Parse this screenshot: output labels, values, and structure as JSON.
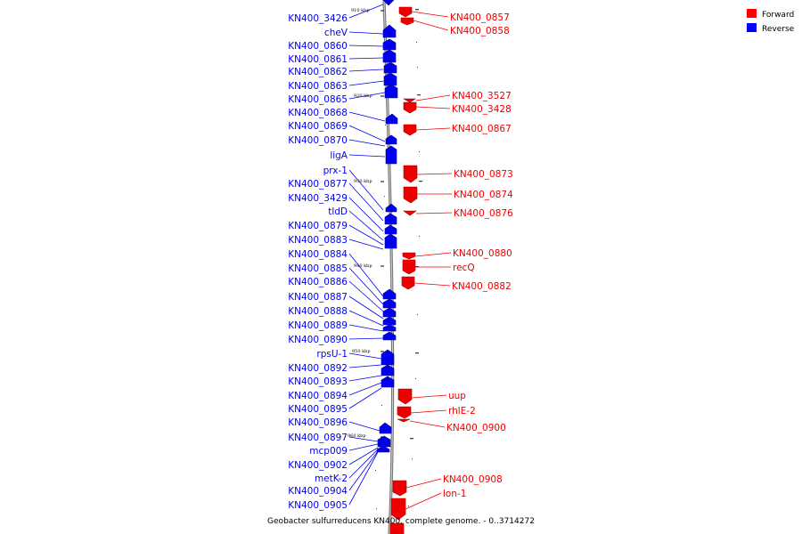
{
  "caption": "Geobacter sulfurreducens KN400, complete genome. - 0..3714272",
  "legend": [
    {
      "label": "Forward",
      "color": "#ff0000"
    },
    {
      "label": "Reverse",
      "color": "#0000ff"
    }
  ],
  "colors": {
    "forward": "#ff0000",
    "reverse": "#0000ff",
    "backbone": "#888888"
  },
  "scale_ticks": [
    "910 kbp",
    "920 kbp",
    "930 kbp",
    "940 kbp",
    "950 kbp",
    "960 kbp"
  ],
  "reverse_genes": [
    "KN400_3426",
    "cheV",
    "KN400_0860",
    "KN400_0861",
    "KN400_0862",
    "KN400_0863",
    "KN400_0865",
    "KN400_0868",
    "KN400_0869",
    "KN400_0870",
    "ligA",
    "prx-1",
    "KN400_0877",
    "KN400_3429",
    "tldD",
    "KN400_0879",
    "KN400_0883",
    "KN400_0884",
    "KN400_0885",
    "KN400_0886",
    "KN400_0887",
    "KN400_0888",
    "KN400_0889",
    "KN400_0890",
    "rpsU-1",
    "KN400_0892",
    "KN400_0893",
    "KN400_0894",
    "KN400_0895",
    "KN400_0896",
    "KN400_0897",
    "mcp009",
    "KN400_0902",
    "metK-2",
    "KN400_0904",
    "KN400_0905"
  ],
  "forward_genes": [
    "KN400_0857",
    "KN400_0858",
    "KN400_3527",
    "KN400_3428",
    "KN400_0867",
    "KN400_0873",
    "KN400_0874",
    "KN400_0876",
    "KN400_0880",
    "recQ",
    "KN400_0882",
    "uup",
    "rhlE-2",
    "KN400_0900",
    "KN400_0908",
    "lon-1"
  ]
}
